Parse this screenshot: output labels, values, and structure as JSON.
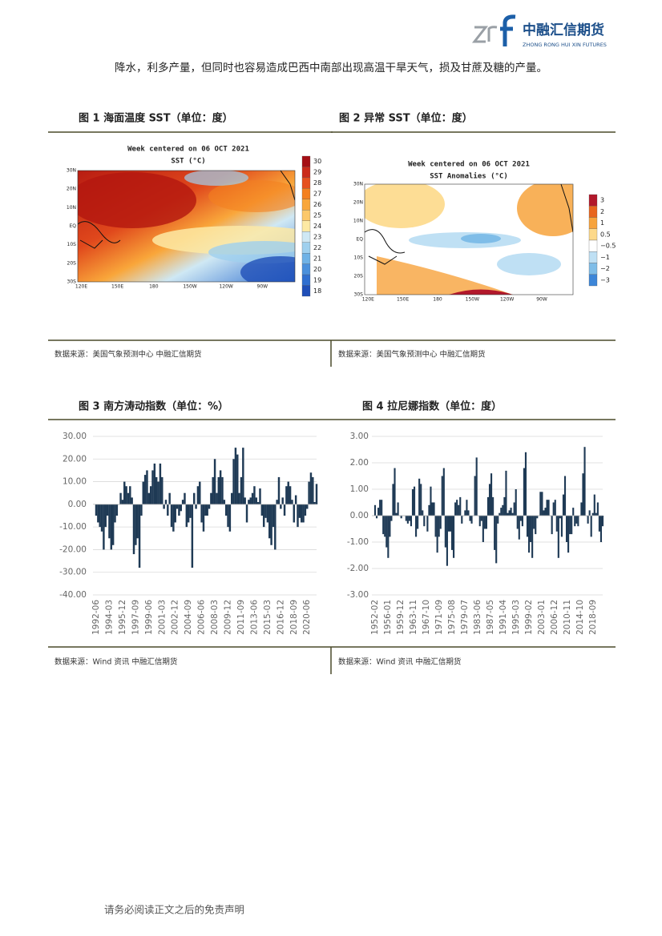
{
  "header": {
    "logo_cn": "中融汇信期货",
    "logo_en": "ZHONG RONG HUI XIN FUTURES"
  },
  "body_text": "降水，利多产量，但同时也容易造成巴西中南部出现高温干旱天气，损及甘蔗及糖的产量。",
  "figures": [
    {
      "title": "图 1 海面温度 SST（单位：度）",
      "map_title": "Week centered on 06 OCT 2021",
      "map_subtitle": "SST (°C)",
      "lat_labels": [
        "30N",
        "20N",
        "10N",
        "EQ",
        "10S",
        "20S",
        "30S"
      ],
      "lon_labels": [
        "120E",
        "150E",
        "180",
        "150W",
        "120W",
        "90W"
      ],
      "colorbar": {
        "labels": [
          "30",
          "29",
          "28",
          "27",
          "26",
          "25",
          "24",
          "23",
          "22",
          "21",
          "20",
          "19",
          "18"
        ],
        "colors": [
          "#a50f15",
          "#cb2a1a",
          "#e6501e",
          "#f4801f",
          "#f9a63a",
          "#fcc86a",
          "#fde9a4",
          "#cfe8f4",
          "#9fd0ee",
          "#6fb2e6",
          "#4a90dc",
          "#2f6fd0",
          "#1f4fb8"
        ]
      },
      "source": "数据来源：美国气象预测中心 中融汇信期货"
    },
    {
      "title": "图 2 异常 SST（单位：度）",
      "map_title": "Week centered on 06 OCT 2021",
      "map_subtitle": "SST Anomalies (°C)",
      "lat_labels": [
        "30N",
        "20N",
        "10N",
        "EQ",
        "10S",
        "20S",
        "30S"
      ],
      "lon_labels": [
        "120E",
        "150E",
        "180",
        "150W",
        "120W",
        "90W"
      ],
      "colorbar": {
        "labels": [
          "3",
          "2",
          "1",
          "0.5",
          "−0.5",
          "−1",
          "−2",
          "−3"
        ],
        "colors": [
          "#b2182b",
          "#e8651e",
          "#f7a33c",
          "#fdd98a",
          "#ffffff",
          "#bfe0f4",
          "#7fbde8",
          "#3d86d8"
        ]
      },
      "source": "数据来源：美国气象预测中心 中融汇信期货"
    }
  ],
  "chart_data": [
    {
      "type": "bar",
      "title": "图 3 南方涛动指数（单位：%）",
      "color": "#1f3a55",
      "grid": true,
      "ylim": [
        -40,
        30
      ],
      "yticks": [
        {
          "value": 30,
          "label": "30.00"
        },
        {
          "value": 20,
          "label": "20.00"
        },
        {
          "value": 10,
          "label": "10.00"
        },
        {
          "value": 0,
          "label": "0.00"
        },
        {
          "value": -10,
          "label": "-10.00"
        },
        {
          "value": -20,
          "label": "-20.00"
        },
        {
          "value": -30,
          "label": "-30.00"
        },
        {
          "value": -40,
          "label": "-40.00"
        }
      ],
      "xticks": [
        "1992-06",
        "1994-03",
        "1995-12",
        "1997-09",
        "1999-06",
        "2001-03",
        "2002-12",
        "2004-09",
        "2006-06",
        "2008-03",
        "2009-12",
        "2011-09",
        "2013-06",
        "2015-03",
        "2016-12",
        "2018-09",
        "2020-06"
      ],
      "x": [
        "1992-06",
        "1992-09",
        "1992-12",
        "1993-03",
        "1993-06",
        "1993-09",
        "1993-12",
        "1994-03",
        "1994-06",
        "1994-09",
        "1994-12",
        "1995-03",
        "1995-06",
        "1995-09",
        "1995-12",
        "1996-03",
        "1996-06",
        "1996-09",
        "1996-12",
        "1997-03",
        "1997-06",
        "1997-09",
        "1997-12",
        "1998-03",
        "1998-06",
        "1998-09",
        "1998-12",
        "1999-03",
        "1999-06",
        "1999-09",
        "1999-12",
        "2000-03",
        "2000-06",
        "2000-09",
        "2000-12",
        "2001-03",
        "2001-06",
        "2001-09",
        "2001-12",
        "2002-03",
        "2002-06",
        "2002-09",
        "2002-12",
        "2003-03",
        "2003-06",
        "2003-09",
        "2003-12",
        "2004-03",
        "2004-06",
        "2004-09",
        "2004-12",
        "2005-03",
        "2005-06",
        "2005-09",
        "2005-12",
        "2006-03",
        "2006-06",
        "2006-09",
        "2006-12",
        "2007-03",
        "2007-06",
        "2007-09",
        "2007-12",
        "2008-03",
        "2008-06",
        "2008-09",
        "2008-12",
        "2009-03",
        "2009-06",
        "2009-09",
        "2009-12",
        "2010-03",
        "2010-06",
        "2010-09",
        "2010-12",
        "2011-03",
        "2011-06",
        "2011-09",
        "2011-12",
        "2012-03",
        "2012-06",
        "2012-09",
        "2012-12",
        "2013-03",
        "2013-06",
        "2013-09",
        "2013-12",
        "2014-03",
        "2014-06",
        "2014-09",
        "2014-12",
        "2015-03",
        "2015-06",
        "2015-09",
        "2015-12",
        "2016-03",
        "2016-06",
        "2016-09",
        "2016-12",
        "2017-03",
        "2017-06",
        "2017-09",
        "2017-12",
        "2018-03",
        "2018-06",
        "2018-09",
        "2018-12",
        "2019-03",
        "2019-06",
        "2019-09",
        "2019-12",
        "2020-03",
        "2020-06",
        "2020-09",
        "2020-12",
        "2021-03",
        "2021-06",
        "2021-09"
      ],
      "values": [
        -5,
        -8,
        -10,
        -12,
        -20,
        -10,
        -5,
        -15,
        -20,
        -18,
        -8,
        -5,
        0,
        5,
        2,
        10,
        8,
        5,
        8,
        3,
        -22,
        -18,
        -15,
        -28,
        -5,
        10,
        13,
        15,
        5,
        8,
        15,
        18,
        12,
        10,
        18,
        12,
        -2,
        2,
        -5,
        5,
        -10,
        -12,
        -8,
        -2,
        -5,
        -3,
        2,
        5,
        -10,
        -8,
        -6,
        -28,
        5,
        -2,
        8,
        10,
        -8,
        -12,
        -5,
        -5,
        -2,
        5,
        12,
        20,
        5,
        12,
        15,
        12,
        2,
        -5,
        -10,
        -12,
        5,
        20,
        25,
        22,
        5,
        12,
        25,
        3,
        -8,
        2,
        3,
        5,
        8,
        3,
        1,
        7,
        -5,
        -10,
        -6,
        -8,
        -15,
        -18,
        -10,
        -20,
        2,
        12,
        -2,
        3,
        -5,
        8,
        10,
        8,
        2,
        -8,
        4,
        -10,
        -6,
        -8,
        -8,
        -5,
        -2,
        10,
        14,
        12,
        1,
        9
      ],
      "source": "数据来源：Wind 资讯 中融汇信期货"
    },
    {
      "type": "bar",
      "title": "图 4 拉尼娜指数（单位：度）",
      "color": "#1f3a55",
      "grid": true,
      "ylim": [
        -3,
        3
      ],
      "yticks": [
        {
          "value": 3,
          "label": "3.00"
        },
        {
          "value": 2,
          "label": "2.00"
        },
        {
          "value": 1,
          "label": "1.00"
        },
        {
          "value": 0,
          "label": "0.00"
        },
        {
          "value": -1,
          "label": "-1.00"
        },
        {
          "value": -2,
          "label": "-2.00"
        },
        {
          "value": -3,
          "label": "-3.00"
        }
      ],
      "xticks": [
        "1952-02",
        "1956-01",
        "1959-12",
        "1963-11",
        "1967-10",
        "1971-09",
        "1975-08",
        "1979-07",
        "1983-06",
        "1987-05",
        "1991-04",
        "1995-03",
        "1999-02",
        "2003-01",
        "2006-12",
        "2010-11",
        "2014-10",
        "2018-09"
      ],
      "x": [
        "1952-02",
        "1952-08",
        "1953-02",
        "1953-08",
        "1954-02",
        "1954-08",
        "1955-02",
        "1955-08",
        "1956-02",
        "1956-08",
        "1957-02",
        "1957-08",
        "1958-02",
        "1958-08",
        "1959-02",
        "1959-08",
        "1960-02",
        "1960-08",
        "1961-02",
        "1961-08",
        "1962-02",
        "1962-08",
        "1963-02",
        "1963-08",
        "1964-02",
        "1964-08",
        "1965-02",
        "1965-08",
        "1966-02",
        "1966-08",
        "1967-02",
        "1967-08",
        "1968-02",
        "1968-08",
        "1969-02",
        "1969-08",
        "1970-02",
        "1970-08",
        "1971-02",
        "1971-08",
        "1972-02",
        "1972-08",
        "1973-02",
        "1973-08",
        "1974-02",
        "1974-08",
        "1975-02",
        "1975-08",
        "1976-02",
        "1976-08",
        "1977-02",
        "1977-08",
        "1978-02",
        "1978-08",
        "1979-02",
        "1979-08",
        "1980-02",
        "1980-08",
        "1981-02",
        "1981-08",
        "1982-02",
        "1982-08",
        "1983-02",
        "1983-08",
        "1984-02",
        "1984-08",
        "1985-02",
        "1985-08",
        "1986-02",
        "1986-08",
        "1987-02",
        "1987-08",
        "1988-02",
        "1988-08",
        "1989-02",
        "1989-08",
        "1990-02",
        "1990-08",
        "1991-02",
        "1991-08",
        "1992-02",
        "1992-08",
        "1993-02",
        "1993-08",
        "1994-02",
        "1994-08",
        "1995-02",
        "1995-08",
        "1996-02",
        "1996-08",
        "1997-02",
        "1997-08",
        "1998-02",
        "1998-08",
        "1999-02",
        "1999-08",
        "2000-02",
        "2000-08",
        "2001-02",
        "2001-08",
        "2002-02",
        "2002-08",
        "2003-02",
        "2003-08",
        "2004-02",
        "2004-08",
        "2005-02",
        "2005-08",
        "2006-02",
        "2006-08",
        "2007-02",
        "2007-08",
        "2008-02",
        "2008-08",
        "2009-02",
        "2009-08",
        "2010-02",
        "2010-08",
        "2011-02",
        "2011-08",
        "2012-02",
        "2012-08",
        "2013-02",
        "2013-08",
        "2014-02",
        "2014-08",
        "2015-02",
        "2015-08",
        "2016-02",
        "2016-08",
        "2017-02",
        "2017-08",
        "2018-02",
        "2018-08",
        "2019-02",
        "2019-08",
        "2020-02",
        "2020-08",
        "2021-02",
        "2021-08"
      ],
      "values": [
        0.4,
        -0.1,
        0.3,
        0.6,
        0.6,
        -0.7,
        -0.8,
        -1.2,
        -1.6,
        -0.8,
        -0.2,
        1.2,
        1.8,
        0.1,
        0.5,
        0,
        -0.1,
        0,
        0,
        -0.2,
        -0.3,
        -0.2,
        -0.4,
        1,
        1.1,
        -0.8,
        -0.5,
        1.4,
        1.2,
        0.2,
        -0.4,
        0,
        -0.6,
        0.4,
        1.1,
        0.5,
        0.5,
        -0.8,
        -1.4,
        -0.8,
        -0.5,
        1.5,
        1.8,
        -1.2,
        -1.9,
        -0.6,
        -0.6,
        -1.3,
        -1.6,
        0.5,
        0.6,
        0.4,
        0.7,
        -0.3,
        0,
        0.2,
        0.6,
        0.2,
        -0.2,
        -0.3,
        0,
        1.5,
        2.2,
        0,
        -0.4,
        -0.2,
        -1,
        -0.5,
        -0.5,
        0.7,
        1.2,
        1.6,
        0.7,
        -1.3,
        -1.8,
        -0.3,
        0.1,
        0.3,
        0.4,
        0.7,
        1.7,
        0.1,
        0.2,
        0.3,
        0.1,
        0.5,
        1,
        -0.5,
        -0.9,
        -0.2,
        -0.4,
        1.8,
        2.4,
        -0.8,
        -1.4,
        -1,
        -1.6,
        -0.5,
        -0.7,
        -0.1,
        0,
        0.9,
        0.9,
        0.2,
        0.3,
        0.6,
        0.6,
        0,
        -0.7,
        0.5,
        0.6,
        -0.6,
        -1.6,
        -0.1,
        -0.8,
        0.8,
        1.5,
        -1,
        -1.4,
        -0.7,
        -0.7,
        0.3,
        -0.4,
        -0.3,
        -0.4,
        0,
        0.5,
        1.6,
        2.6,
        0,
        -0.3,
        0.2,
        -0.8,
        0.1,
        0.8,
        0.1,
        0.5,
        -0.6,
        -1,
        -0.4
      ],
      "source": "数据来源：Wind 资讯 中融汇信期货"
    }
  ],
  "footer": "请务必阅读正文之后的免责声明"
}
